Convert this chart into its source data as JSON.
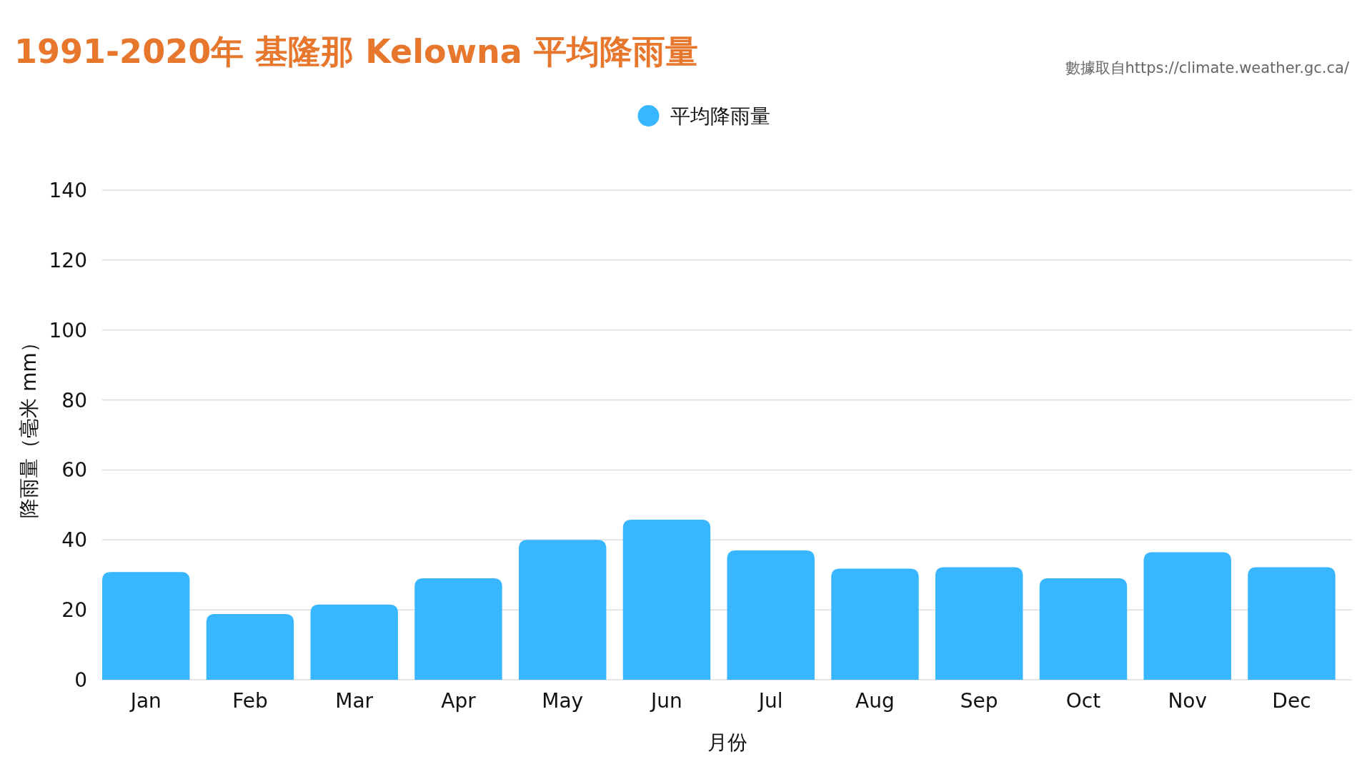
{
  "chart_data": {
    "type": "bar",
    "title": "1991-2020年 基隆那 Kelowna 平均降雨量",
    "annotations": [
      "數據取自https://climate.weather.gc.ca/"
    ],
    "categories": [
      "Jan",
      "Feb",
      "Mar",
      "Apr",
      "May",
      "Jun",
      "Jul",
      "Aug",
      "Sep",
      "Oct",
      "Nov",
      "Dec"
    ],
    "series": [
      {
        "name": "平均降雨量",
        "color": "#38b6ff",
        "values": [
          30.8,
          18.8,
          21.5,
          29,
          40,
          45.8,
          37,
          31.8,
          32.2,
          29,
          36.5,
          32.2
        ]
      }
    ],
    "xlabel": "月份",
    "ylabel": "降雨量（毫米 mm）",
    "ylim": [
      0,
      140
    ],
    "yticks": [
      0,
      20,
      40,
      60,
      80,
      100,
      120,
      140
    ],
    "grid": "y",
    "legend": "top"
  }
}
